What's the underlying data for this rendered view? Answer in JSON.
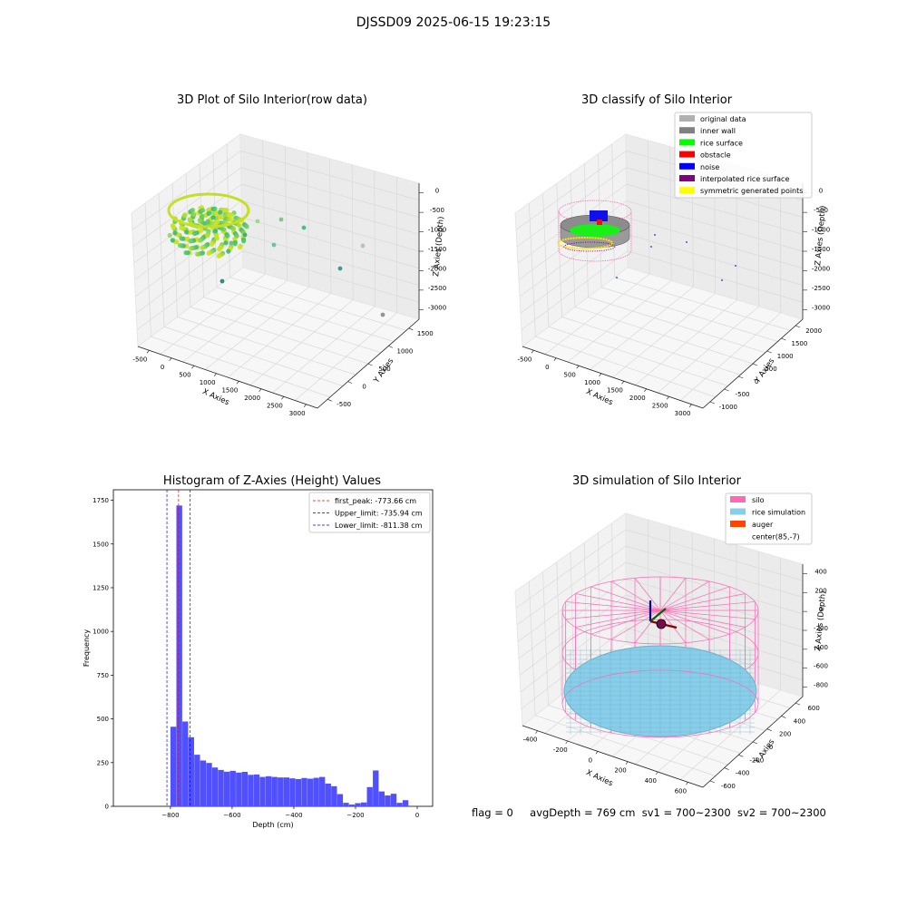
{
  "figure": {
    "suptitle": "DJSSD09 2025-06-15 19:23:15",
    "status": {
      "flag": "flag = 0",
      "avg_depth": "avgDepth = 769 cm",
      "sv1": "sv1 = 700~2300",
      "sv2": "sv2 = 700~2300"
    }
  },
  "chart_data": [
    {
      "type": "scatter",
      "projection": "3d",
      "title": "3D Plot of Silo Interior(row data)",
      "xlabel": "X Axies",
      "ylabel": "Y Axies",
      "zlabel": "Z Axies (Depth)",
      "x_ticks": [
        "-500",
        "0",
        "500",
        "1000",
        "1500",
        "2000",
        "2500",
        "3000"
      ],
      "y_ticks": [
        "-500",
        "0",
        "500",
        "1000",
        "1500"
      ],
      "z_ticks": [
        "0",
        "-500",
        "-1000",
        "-1500",
        "-2000",
        "-2500",
        "-3000"
      ],
      "colormap": "viridis",
      "points_description": "dense bowl-shaped cloud of points near the origin at about -800 depth, plus scattered outliers"
    },
    {
      "type": "scatter",
      "projection": "3d",
      "title": "3D classify of Silo Interior",
      "xlabel": "X Axies",
      "ylabel": "Y Axies",
      "zlabel": "Z Axies (Depth)",
      "x_ticks": [
        "-500",
        "0",
        "500",
        "1000",
        "1500",
        "2000",
        "2500",
        "3000"
      ],
      "y_ticks": [
        "-1000",
        "-500",
        "0",
        "500",
        "1000",
        "1500",
        "2000"
      ],
      "z_ticks": [
        "0",
        "-500",
        "-1000",
        "-1500",
        "-2000",
        "-2500",
        "-3000"
      ],
      "legend_position": "top-right",
      "legend": [
        {
          "label": "original data",
          "color": "#b0b0b0"
        },
        {
          "label": "inner wall",
          "color": "#808080"
        },
        {
          "label": "rice surface",
          "color": "#00ff00"
        },
        {
          "label": "obstacle",
          "color": "#ff0000"
        },
        {
          "label": "noise",
          "color": "#0000ff"
        },
        {
          "label": "interpolated rice surface",
          "color": "#800080"
        },
        {
          "label": "symmetric generated points",
          "color": "#ffff00"
        }
      ]
    },
    {
      "type": "bar",
      "title": "Histogram of Z-Axies (Height) Values",
      "xlabel": "Depth (cm)",
      "ylabel": "Frequency",
      "xlim": [
        -985,
        50
      ],
      "ylim": [
        0,
        1810
      ],
      "x_ticks": [
        -800,
        -600,
        -400,
        -200,
        0
      ],
      "y_ticks": [
        0,
        250,
        500,
        750,
        1000,
        1250,
        1500,
        1750
      ],
      "bar_color": "#5050ff",
      "bin_width": 19.3,
      "bin_start": -800,
      "values": [
        455,
        1720,
        485,
        395,
        295,
        262,
        248,
        222,
        208,
        198,
        203,
        193,
        197,
        180,
        182,
        168,
        172,
        168,
        165,
        165,
        160,
        156,
        162,
        158,
        163,
        168,
        130,
        115,
        70,
        20,
        10,
        18,
        22,
        110,
        205,
        85,
        62,
        72,
        20,
        35
      ],
      "vlines": [
        {
          "x": -773.66,
          "color": "#ff0000",
          "label": "first_peak: -773.66 cm"
        },
        {
          "x": -735.94,
          "color": "#0000ff",
          "label": "Upper_limit: -735.94 cm"
        },
        {
          "x": -811.38,
          "color": "#0000ff",
          "label": "Lower_limit: -811.38 cm"
        }
      ],
      "legend_position": "top-right"
    },
    {
      "type": "surface",
      "projection": "3d",
      "title": "3D simulation of Silo Interior",
      "xlabel": "X Axies",
      "ylabel": "Y Axies",
      "zlabel": "Z Axies (Depth)",
      "x_ticks": [
        "-400",
        "-200",
        "0",
        "200",
        "400",
        "600"
      ],
      "y_ticks": [
        "-600",
        "-400",
        "-200",
        "0",
        "200",
        "400",
        "600"
      ],
      "z_ticks": [
        "400",
        "200",
        "0",
        "-200",
        "-400",
        "-600",
        "-800"
      ],
      "legend_position": "top-right",
      "legend": [
        {
          "label": "silo",
          "color": "#ff69b4"
        },
        {
          "label": "rice simulation",
          "color": "#87ceeb"
        },
        {
          "label": "auger",
          "color": "#ff4500"
        },
        {
          "label": "center(85,-7)",
          "color": "#ffffff"
        }
      ]
    }
  ]
}
